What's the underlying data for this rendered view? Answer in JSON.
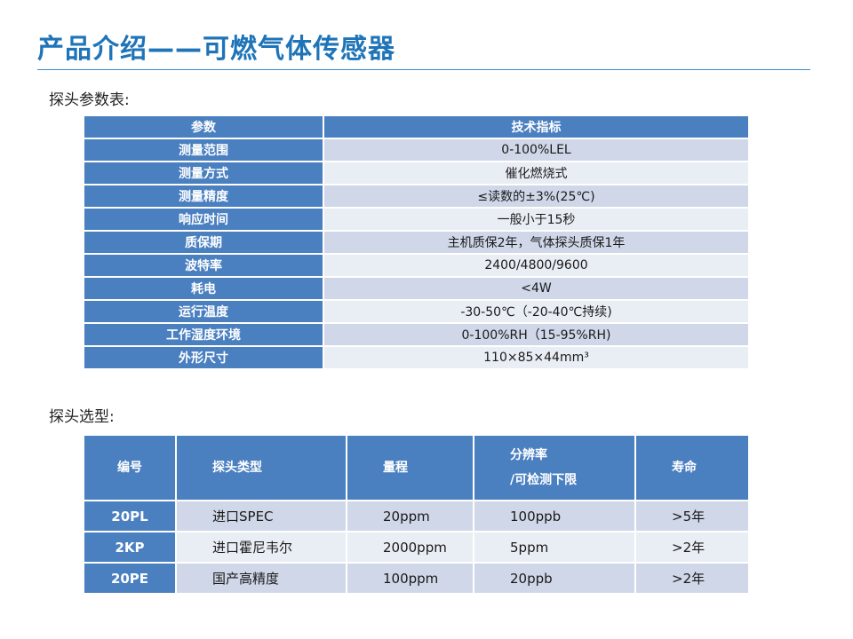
{
  "title": "产品介绍——可燃气体传感器",
  "section1": "探头参数表:",
  "section2": "探头选型:",
  "params_table": {
    "headers": [
      "参数",
      "技术指标"
    ],
    "rows": [
      {
        "param": "测量范围",
        "value": "0-100%LEL"
      },
      {
        "param": "测量方式",
        "value": "催化燃烧式"
      },
      {
        "param": "测量精度",
        "value": "≤读数的±3%(25℃)"
      },
      {
        "param": "响应时间",
        "value": "一般小于15秒"
      },
      {
        "param": "质保期",
        "value": "主机质保2年，气体探头质保1年"
      },
      {
        "param": "波特率",
        "value": "2400/4800/9600"
      },
      {
        "param": "耗电",
        "value": "<4W"
      },
      {
        "param": "运行温度",
        "value": "-30-50℃（-20-40℃持续)"
      },
      {
        "param": "工作湿度环境",
        "value": "0-100%RH（15-95%RH)"
      },
      {
        "param": "外形尺寸",
        "value": "110×85×44mm³"
      }
    ]
  },
  "selection_table": {
    "headers": [
      "编号",
      "探头类型",
      "量程",
      "分辨率",
      "/可检测下限",
      "寿命"
    ],
    "rows": [
      {
        "id": "20PL",
        "type": "进口SPEC",
        "range": "20ppm",
        "resolution": "100ppb",
        "life": ">5年"
      },
      {
        "id": "2KP",
        "type": "进口霍尼韦尔",
        "range": "2000ppm",
        "resolution": "5ppm",
        "life": ">2年"
      },
      {
        "id": "20PE",
        "type": "国产高精度",
        "range": "100ppm",
        "resolution": "20ppb",
        "life": ">2年"
      }
    ]
  },
  "colors": {
    "title": "#1f74b8",
    "header": "#4a7fc0",
    "row_dark": "#cfd7e8",
    "row_light": "#e9edf4"
  }
}
